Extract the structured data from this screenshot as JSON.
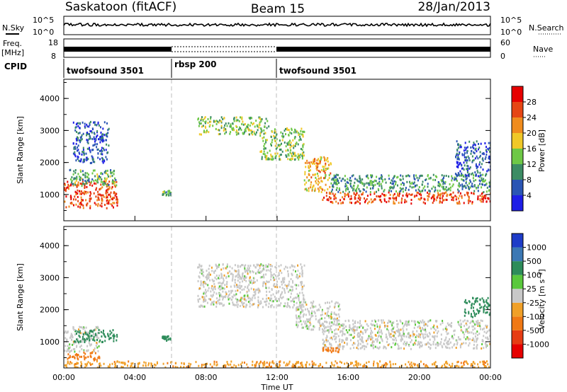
{
  "header": {
    "station": "Saskatoon (fitACF)",
    "beam": "Beam 15",
    "date": "28/Jan/2013"
  },
  "aux_panels": {
    "nsky_label": "N.Sky",
    "nsearch_label": "N.Search",
    "noise_ticks": [
      "10^5",
      "10^0"
    ],
    "freq_label_line1": "Freq.",
    "freq_label_line2": "[MHz]",
    "freq_ticks": [
      "18",
      "8"
    ],
    "nave_label": "Nave",
    "nave_ticks": [
      "60",
      "0"
    ],
    "cpid_label": "CPID"
  },
  "cpid_segments": [
    {
      "label": "twofsound 3501",
      "start_hr": 0,
      "end_hr": 6
    },
    {
      "label": "rbsp 200",
      "start_hr": 6,
      "end_hr": 12
    },
    {
      "label": "twofsound 3501",
      "start_hr": 12,
      "end_hr": 24
    }
  ],
  "time_axis": {
    "label": "Time UT",
    "ticks": [
      "00:00",
      "04:00",
      "08:00",
      "12:00",
      "16:00",
      "20:00",
      "00:00"
    ]
  },
  "range_axis": {
    "label": "Slant Range [km]",
    "ticks": [
      "1000",
      "2000",
      "3000",
      "4000"
    ]
  },
  "power_colorbar": {
    "label": "Power [dB]",
    "ticks": [
      "4",
      "8",
      "12",
      "16",
      "20",
      "24",
      "28"
    ],
    "colors": [
      "#1e1ee6",
      "#2a55b4",
      "#3c8c64",
      "#6ec846",
      "#f0c828",
      "#f08c1e",
      "#e64614",
      "#e60000"
    ]
  },
  "velocity_colorbar": {
    "label": "Velocity [m s⁻¹]",
    "ticks": [
      "1000",
      "500",
      "100",
      "25",
      "-25",
      "-100",
      "-500",
      "-1000"
    ],
    "colors": [
      "#1e3cc8",
      "#3c78b4",
      "#2d8c5a",
      "#5ac83c",
      "#c8c8c8",
      "#f0a028",
      "#f07814",
      "#e63c14",
      "#e60000"
    ]
  },
  "chart_data": [
    {
      "type": "heatmap",
      "title": "Power",
      "xlabel": "Time UT",
      "ylabel": "Slant Range [km]",
      "xlim": [
        0,
        24
      ],
      "ylim": [
        180,
        4600
      ],
      "value_label": "Power [dB]",
      "scatter_regions": [
        {
          "t0": 0.0,
          "t1": 3.0,
          "r0": 600,
          "r1": 1450,
          "value": 26
        },
        {
          "t0": 0.3,
          "t1": 3.0,
          "r0": 1300,
          "r1": 1800,
          "value": 12
        },
        {
          "t0": 0.5,
          "t1": 2.5,
          "r0": 2000,
          "r1": 3300,
          "value": 6
        },
        {
          "t0": 5.5,
          "t1": 6.0,
          "r0": 1000,
          "r1": 1150,
          "value": 12
        },
        {
          "t0": 7.5,
          "t1": 11.5,
          "r0": 2900,
          "r1": 3450,
          "value": 14
        },
        {
          "t0": 11.0,
          "t1": 13.5,
          "r0": 2100,
          "r1": 3100,
          "value": 14
        },
        {
          "t0": 13.5,
          "t1": 15.0,
          "r0": 1100,
          "r1": 2200,
          "value": 20
        },
        {
          "t0": 14.5,
          "t1": 24.0,
          "r0": 750,
          "r1": 1100,
          "value": 26
        },
        {
          "t0": 15.0,
          "t1": 24.0,
          "r0": 1100,
          "r1": 1650,
          "value": 10
        },
        {
          "t0": 22.0,
          "t1": 24.0,
          "r0": 1600,
          "r1": 2700,
          "value": 6
        }
      ]
    },
    {
      "type": "heatmap",
      "title": "Velocity",
      "xlabel": "Time UT",
      "ylabel": "Slant Range [km]",
      "xlim": [
        0,
        24
      ],
      "ylim": [
        180,
        4600
      ],
      "value_label": "Velocity [m s⁻¹]",
      "scatter_regions": [
        {
          "t0": 0.0,
          "t1": 2.0,
          "r0": 700,
          "r1": 1500,
          "value": 0
        },
        {
          "t0": 0.5,
          "t1": 3.0,
          "r0": 1000,
          "r1": 1400,
          "value": 150
        },
        {
          "t0": 0.0,
          "t1": 2.0,
          "r0": 450,
          "r1": 700,
          "value": -150
        },
        {
          "t0": 5.5,
          "t1": 6.0,
          "r0": 1050,
          "r1": 1200,
          "value": 200
        },
        {
          "t0": 7.5,
          "t1": 13.5,
          "r0": 2100,
          "r1": 3450,
          "value": 0
        },
        {
          "t0": 13.0,
          "t1": 15.5,
          "r0": 1400,
          "r1": 2300,
          "value": 0
        },
        {
          "t0": 14.5,
          "t1": 24.0,
          "r0": 800,
          "r1": 1700,
          "value": 0
        },
        {
          "t0": 14.5,
          "t1": 15.5,
          "r0": 700,
          "r1": 850,
          "value": -300
        },
        {
          "t0": 22.5,
          "t1": 24.0,
          "r0": 1800,
          "r1": 2400,
          "value": 300
        },
        {
          "t0": 0.0,
          "t1": 24.0,
          "r0": 220,
          "r1": 420,
          "value": -80
        }
      ]
    }
  ]
}
